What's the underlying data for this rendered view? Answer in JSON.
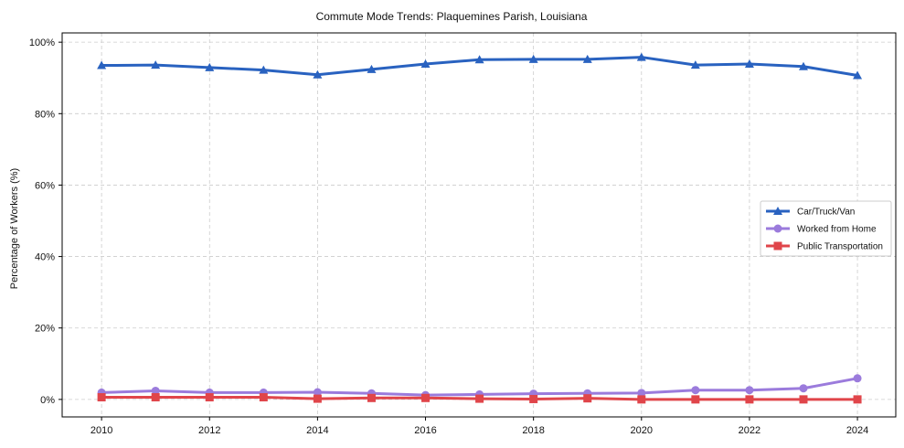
{
  "chart_data": {
    "type": "line",
    "title": "Commute Mode Trends: Plaquemines Parish, Louisiana",
    "xlabel": "",
    "ylabel": "Percentage of Workers (%)",
    "x": [
      2010,
      2011,
      2012,
      2013,
      2014,
      2015,
      2016,
      2017,
      2018,
      2019,
      2020,
      2021,
      2022,
      2023,
      2024
    ],
    "xticks": [
      2010,
      2012,
      2014,
      2016,
      2018,
      2020,
      2022,
      2024
    ],
    "xtick_labels": [
      "2010",
      "2012",
      "2014",
      "2016",
      "2018",
      "2020",
      "2022",
      "2024"
    ],
    "yticks": [
      0,
      20,
      40,
      60,
      80,
      100
    ],
    "ytick_labels": [
      "0%",
      "20%",
      "40%",
      "60%",
      "80%",
      "100%"
    ],
    "xlim": [
      2009.27,
      2024.71
    ],
    "ylim": [
      -4.9,
      102.6
    ],
    "grid": true,
    "legend_position": "center-right",
    "series": [
      {
        "name": "Car/Truck/Van",
        "color": "#2962c0",
        "marker": "triangle",
        "values": [
          93.5,
          93.6,
          92.9,
          92.2,
          90.9,
          92.4,
          93.9,
          95.1,
          95.2,
          95.2,
          95.8,
          93.6,
          93.9,
          93.2,
          90.7
        ]
      },
      {
        "name": "Worked from Home",
        "color": "#9b7bdc",
        "marker": "circle",
        "values": [
          1.9,
          2.4,
          1.9,
          1.9,
          2.0,
          1.7,
          1.2,
          1.4,
          1.6,
          1.7,
          1.8,
          2.6,
          2.6,
          3.1,
          5.9
        ]
      },
      {
        "name": "Public Transportation",
        "color": "#e0454a",
        "marker": "square",
        "values": [
          0.6,
          0.6,
          0.6,
          0.6,
          0.2,
          0.4,
          0.4,
          0.2,
          0.1,
          0.3,
          0.0,
          0.0,
          0.0,
          0.0,
          0.0
        ]
      }
    ]
  }
}
